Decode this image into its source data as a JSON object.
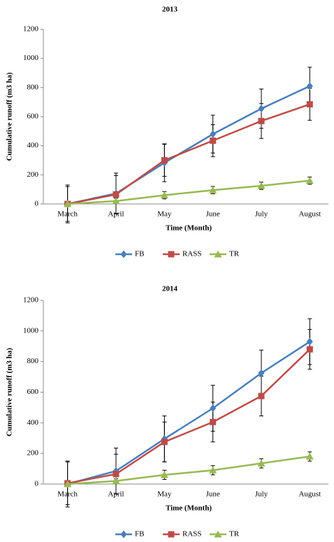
{
  "chart_data": [
    {
      "type": "line",
      "title": "2013",
      "x_label": "Time (Month)",
      "y_label": "Cumulative runoff (m3 ha)",
      "categories": [
        "March",
        "April",
        "May",
        "June",
        "July",
        "August"
      ],
      "ylim": [
        0,
        1200
      ],
      "yticks": [
        0,
        200,
        400,
        600,
        800,
        1000,
        1200
      ],
      "legend": "bottom",
      "series": [
        {
          "name": "FB",
          "color": "#4a7ebb",
          "marker": "diamond",
          "values": [
            0,
            72,
            283,
            480,
            655,
            810
          ],
          "errors": [
            130,
            140,
            130,
            130,
            135,
            130
          ]
        },
        {
          "name": "RASS",
          "color": "#be4b48",
          "marker": "square",
          "values": [
            0,
            65,
            300,
            435,
            570,
            685
          ],
          "errors": [
            120,
            130,
            110,
            110,
            120,
            110
          ]
        },
        {
          "name": "TR",
          "color": "#98b954",
          "marker": "triangle",
          "values": [
            0,
            20,
            60,
            95,
            125,
            160
          ],
          "errors": [
            0,
            20,
            25,
            25,
            25,
            25
          ]
        }
      ]
    },
    {
      "type": "line",
      "title": "2014",
      "x_label": "Time (Month)",
      "y_label": "Cumulative runoff (m3 ha)",
      "categories": [
        "March",
        "April",
        "May",
        "June",
        "July",
        "August"
      ],
      "ylim": [
        0,
        1200
      ],
      "yticks": [
        0,
        200,
        400,
        600,
        800,
        1000,
        1200
      ],
      "legend": "bottom",
      "series": [
        {
          "name": "FB",
          "color": "#4a7ebb",
          "marker": "diamond",
          "values": [
            0,
            85,
            295,
            495,
            725,
            930
          ],
          "errors": [
            150,
            150,
            150,
            150,
            150,
            150
          ]
        },
        {
          "name": "RASS",
          "color": "#be4b48",
          "marker": "square",
          "values": [
            5,
            65,
            275,
            405,
            575,
            880
          ],
          "errors": [
            140,
            130,
            130,
            130,
            130,
            130
          ]
        },
        {
          "name": "TR",
          "color": "#98b954",
          "marker": "triangle",
          "values": [
            0,
            20,
            60,
            90,
            135,
            180
          ],
          "errors": [
            0,
            15,
            30,
            30,
            30,
            30
          ]
        }
      ]
    }
  ]
}
